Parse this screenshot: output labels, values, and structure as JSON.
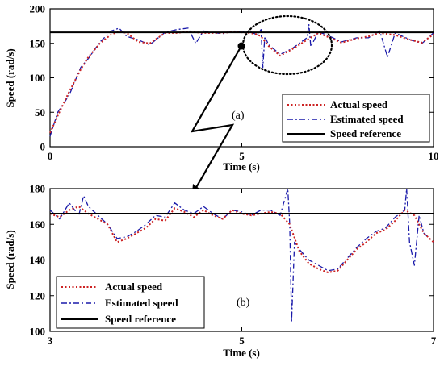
{
  "colors": {
    "actual": "#cc2222",
    "estimated": "#1a1aaa",
    "reference": "#000000"
  },
  "chart_data": [
    {
      "type": "line",
      "panel_label": "(a)",
      "xlabel": "Time (s)",
      "ylabel": "Speed (rad/s)",
      "xlim": [
        0,
        10
      ],
      "ylim": [
        0,
        200
      ],
      "xticks": [
        0,
        5,
        10
      ],
      "yticks": [
        0,
        50,
        100,
        150,
        200
      ],
      "legend_position": "bottom-right",
      "grid": false,
      "series": [
        {
          "name": "Actual speed",
          "style": "dotted",
          "x": [
            0,
            0.2,
            0.5,
            0.8,
            1.0,
            1.3,
            1.6,
            1.8,
            2.0,
            2.3,
            2.6,
            3.0,
            3.3,
            3.6,
            3.8,
            4.0,
            4.2,
            4.5,
            4.8,
            5.0,
            5.2,
            5.4,
            5.5,
            5.7,
            6.0,
            6.3,
            6.7,
            7.0,
            7.3,
            7.6,
            8.0,
            8.3,
            8.6,
            9.0,
            9.4,
            9.7,
            10.0
          ],
          "y": [
            20,
            45,
            80,
            112,
            130,
            150,
            163,
            167,
            165,
            152,
            150,
            165,
            165,
            167,
            166,
            165,
            165,
            165,
            167,
            166,
            165,
            163,
            160,
            146,
            132,
            141,
            155,
            165,
            158,
            151,
            157,
            160,
            165,
            162,
            155,
            151,
            163
          ]
        },
        {
          "name": "Estimated speed",
          "style": "dashdot",
          "x": [
            0,
            0.2,
            0.5,
            0.8,
            1.0,
            1.3,
            1.6,
            1.8,
            2.0,
            2.3,
            2.6,
            3.0,
            3.3,
            3.6,
            3.8,
            4.0,
            4.2,
            4.5,
            4.8,
            5.0,
            5.2,
            5.4,
            5.5,
            5.55,
            5.6,
            5.7,
            6.0,
            6.3,
            6.7,
            6.75,
            6.8,
            7.0,
            7.3,
            7.6,
            8.0,
            8.3,
            8.6,
            8.8,
            9.0,
            9.4,
            9.7,
            10.0
          ],
          "y": [
            15,
            50,
            75,
            115,
            128,
            152,
            168,
            172,
            160,
            155,
            148,
            166,
            170,
            172,
            150,
            168,
            166,
            164,
            168,
            166,
            168,
            162,
            170,
            115,
            160,
            148,
            134,
            142,
            158,
            178,
            145,
            167,
            160,
            152,
            158,
            158,
            168,
            130,
            165,
            155,
            150,
            165
          ]
        },
        {
          "name": "Speed reference",
          "style": "solid",
          "x": [
            0,
            10
          ],
          "y": [
            166,
            166
          ]
        }
      ]
    },
    {
      "type": "line",
      "panel_label": "(b)",
      "xlabel": "Time (s)",
      "ylabel": "Speed (rad/s)",
      "xlim": [
        3,
        7
      ],
      "ylim": [
        100,
        180
      ],
      "xticks": [
        3,
        5,
        7
      ],
      "yticks": [
        100,
        120,
        140,
        160,
        180
      ],
      "legend_position": "bottom-left",
      "grid": false,
      "series": [
        {
          "name": "Actual speed",
          "style": "dotted",
          "x": [
            3.0,
            3.1,
            3.2,
            3.3,
            3.4,
            3.5,
            3.6,
            3.7,
            3.8,
            3.9,
            4.0,
            4.1,
            4.2,
            4.3,
            4.4,
            4.5,
            4.6,
            4.7,
            4.8,
            4.9,
            5.0,
            5.1,
            5.2,
            5.3,
            5.4,
            5.5,
            5.6,
            5.7,
            5.8,
            5.9,
            6.0,
            6.1,
            6.2,
            6.3,
            6.4,
            6.5,
            6.6,
            6.7,
            6.8,
            6.9,
            7.0
          ],
          "y": [
            166,
            164,
            168,
            170,
            166,
            163,
            160,
            150,
            152,
            155,
            158,
            163,
            162,
            169,
            167,
            164,
            168,
            165,
            163,
            168,
            166,
            165,
            166,
            167,
            166,
            160,
            145,
            138,
            135,
            133,
            134,
            140,
            146,
            150,
            155,
            157,
            162,
            168,
            165,
            155,
            150
          ]
        },
        {
          "name": "Estimated speed",
          "style": "dashdot",
          "x": [
            3.0,
            3.1,
            3.2,
            3.3,
            3.35,
            3.4,
            3.5,
            3.6,
            3.7,
            3.8,
            3.9,
            4.0,
            4.1,
            4.2,
            4.3,
            4.4,
            4.5,
            4.6,
            4.7,
            4.8,
            4.9,
            5.0,
            5.1,
            5.2,
            5.3,
            5.4,
            5.48,
            5.5,
            5.52,
            5.55,
            5.6,
            5.7,
            5.8,
            5.9,
            6.0,
            6.1,
            6.2,
            6.3,
            6.4,
            6.5,
            6.6,
            6.7,
            6.72,
            6.75,
            6.8,
            6.85,
            6.9,
            7.0
          ],
          "y": [
            168,
            163,
            172,
            165,
            176,
            170,
            165,
            160,
            152,
            153,
            156,
            160,
            165,
            164,
            172,
            168,
            166,
            170,
            166,
            163,
            168,
            167,
            165,
            168,
            168,
            165,
            180,
            160,
            105,
            150,
            146,
            140,
            137,
            134,
            135,
            141,
            147,
            152,
            156,
            158,
            164,
            168,
            180,
            150,
            137,
            165,
            155,
            150
          ]
        },
        {
          "name": "Speed reference",
          "style": "solid",
          "x": [
            3,
            7
          ],
          "y": [
            166,
            166
          ]
        }
      ]
    }
  ]
}
